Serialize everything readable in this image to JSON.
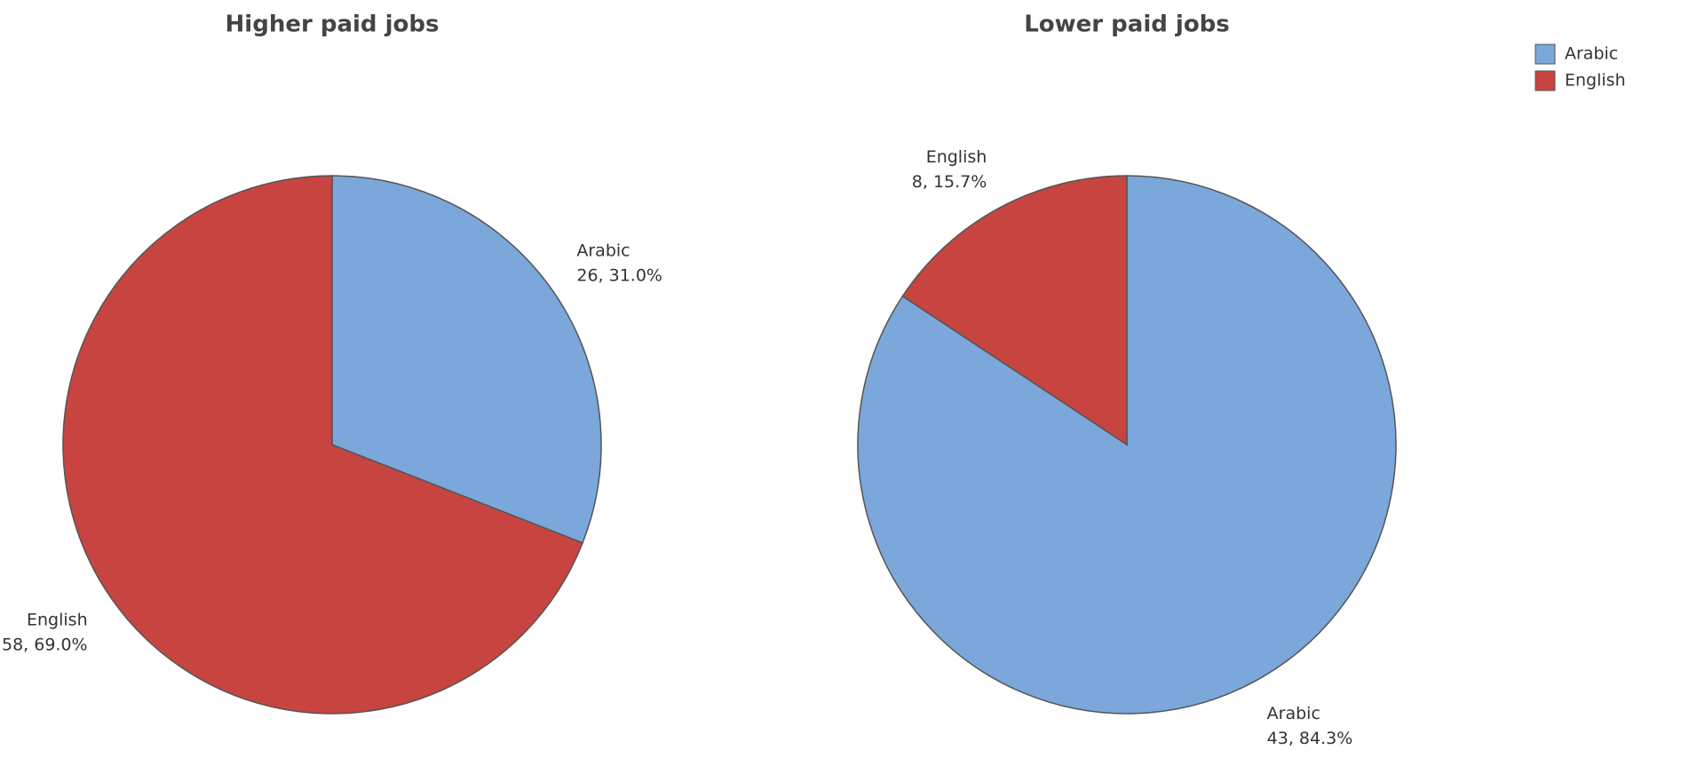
{
  "chart_data": [
    {
      "type": "pie",
      "title": "Higher paid jobs",
      "categories": [
        "Arabic",
        "English"
      ],
      "values": [
        26,
        58
      ],
      "value_labels": [
        "26, 31.0%",
        "58, 69.0%"
      ],
      "colors": [
        "#7ba7da",
        "#c84441"
      ],
      "legend": "top-right"
    },
    {
      "type": "pie",
      "title": "Lower paid jobs",
      "categories": [
        "Arabic",
        "English"
      ],
      "values": [
        43,
        8
      ],
      "value_labels": [
        "43, 84.3%",
        "8, 15.7%"
      ],
      "colors": [
        "#7ba7da",
        "#c84441"
      ]
    }
  ]
}
